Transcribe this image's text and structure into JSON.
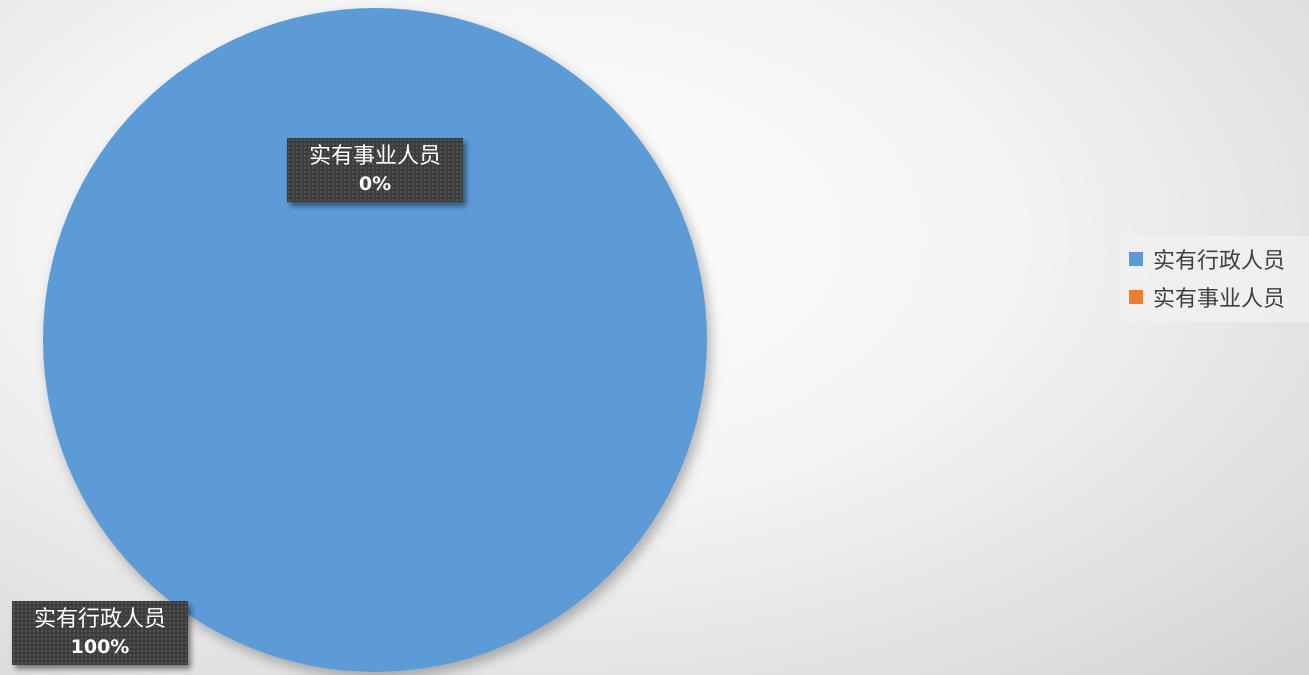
{
  "chart_data": {
    "type": "pie",
    "title": "",
    "categories": [
      "实有行政人员",
      "实有事业人员"
    ],
    "values": [
      100,
      0
    ],
    "percent_labels": [
      "100%",
      "0%"
    ],
    "colors": [
      "#5b9bd5",
      "#ed7d31"
    ],
    "legend_position": "right"
  }
}
